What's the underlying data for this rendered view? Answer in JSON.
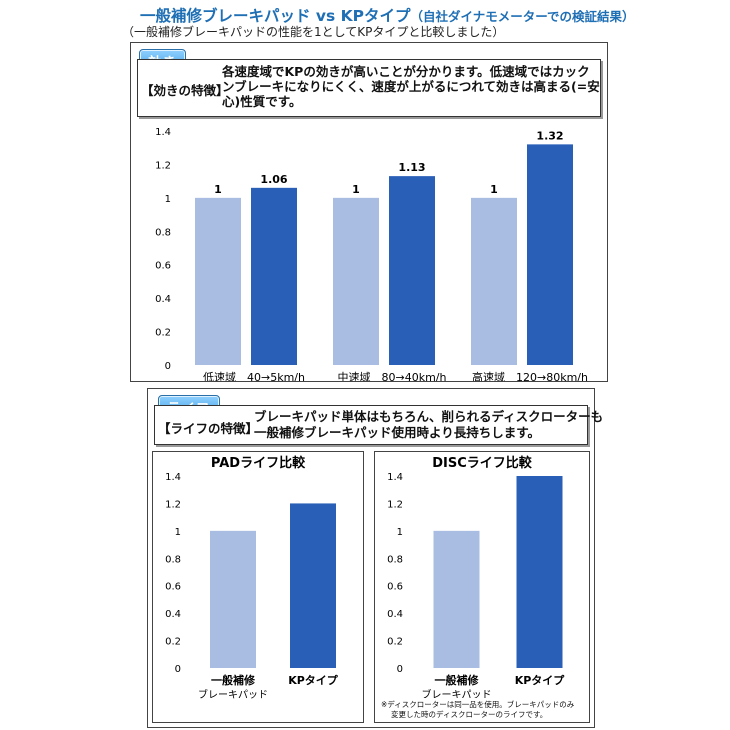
{
  "header": {
    "title_main": "一般補修ブレーキパッド vs KPタイプ",
    "title_paren": "（自社ダイナモメーターでの検証結果）",
    "subtitle": "（一般補修ブレーキパッドの性能を1としてKPタイプと比較しました）"
  },
  "effect_panel": {
    "tag": "効き",
    "feature_label": "【効きの特徴】",
    "feature_text": "各速度域でKPの効きが高いことが分かります。低速域ではカックンブレーキになりにくく、速度が上がるにつれて効きは高まる(=安心)性質です。"
  },
  "life_panel": {
    "tag": "ライフ",
    "feature_label": "【ライフの特徴】",
    "feature_text_1": "ブレーキパッド単体はもちろん、削られるディスクローターも",
    "feature_text_2": "一般補修ブレーキパッド使用時より長持ちします。",
    "note_1": "※ディスクローターは同一品を使用。ブレーキパッドのみ",
    "note_2": "変更した時のディスクローターのライフです。"
  },
  "chart_data": [
    {
      "type": "bar",
      "categories": [
        "低速域　40→5km/h",
        "中速域　80→40km/h",
        "高速域　120→80km/h"
      ],
      "series": [
        {
          "name": "一般補修ブレーキパッド",
          "values": [
            1,
            1,
            1
          ],
          "labels": [
            "1",
            "1",
            "1"
          ]
        },
        {
          "name": "KPタイプ",
          "values": [
            1.06,
            1.13,
            1.32
          ],
          "labels": [
            "1.06",
            "1.13",
            "1.32"
          ]
        }
      ],
      "yticks": [
        "0",
        "0.2",
        "0.4",
        "0.6",
        "0.8",
        "1",
        "1.2",
        "1.4"
      ],
      "ylim": [
        0,
        1.4
      ],
      "legend_position": "bottom",
      "colors": {
        "general": "#a9bde3",
        "kp": "#2a5fb8"
      }
    },
    {
      "type": "bar",
      "title": "PADライフ比較",
      "categories": [
        "一般補修ブレーキパッド",
        "KPタイプ"
      ],
      "category_lines": [
        [
          "一般補修",
          "ブレーキパッド"
        ],
        [
          "KPタイプ"
        ]
      ],
      "values": [
        1,
        1.2
      ],
      "yticks": [
        "0",
        "0.2",
        "0.4",
        "0.6",
        "0.8",
        "1",
        "1.2",
        "1.4"
      ],
      "ylim": [
        0,
        1.4
      ],
      "colors": [
        "#a9bde3",
        "#2a5fb8"
      ]
    },
    {
      "type": "bar",
      "title": "DISCライフ比較",
      "categories": [
        "一般補修ブレーキパッド",
        "KPタイプ"
      ],
      "category_lines": [
        [
          "一般補修",
          "ブレーキパッド"
        ],
        [
          "KPタイプ"
        ]
      ],
      "values": [
        1,
        1.4
      ],
      "yticks": [
        "0",
        "0.2",
        "0.4",
        "0.6",
        "0.8",
        "1",
        "1.2",
        "1.4"
      ],
      "ylim": [
        0,
        1.4
      ],
      "colors": [
        "#a9bde3",
        "#2a5fb8"
      ]
    }
  ]
}
